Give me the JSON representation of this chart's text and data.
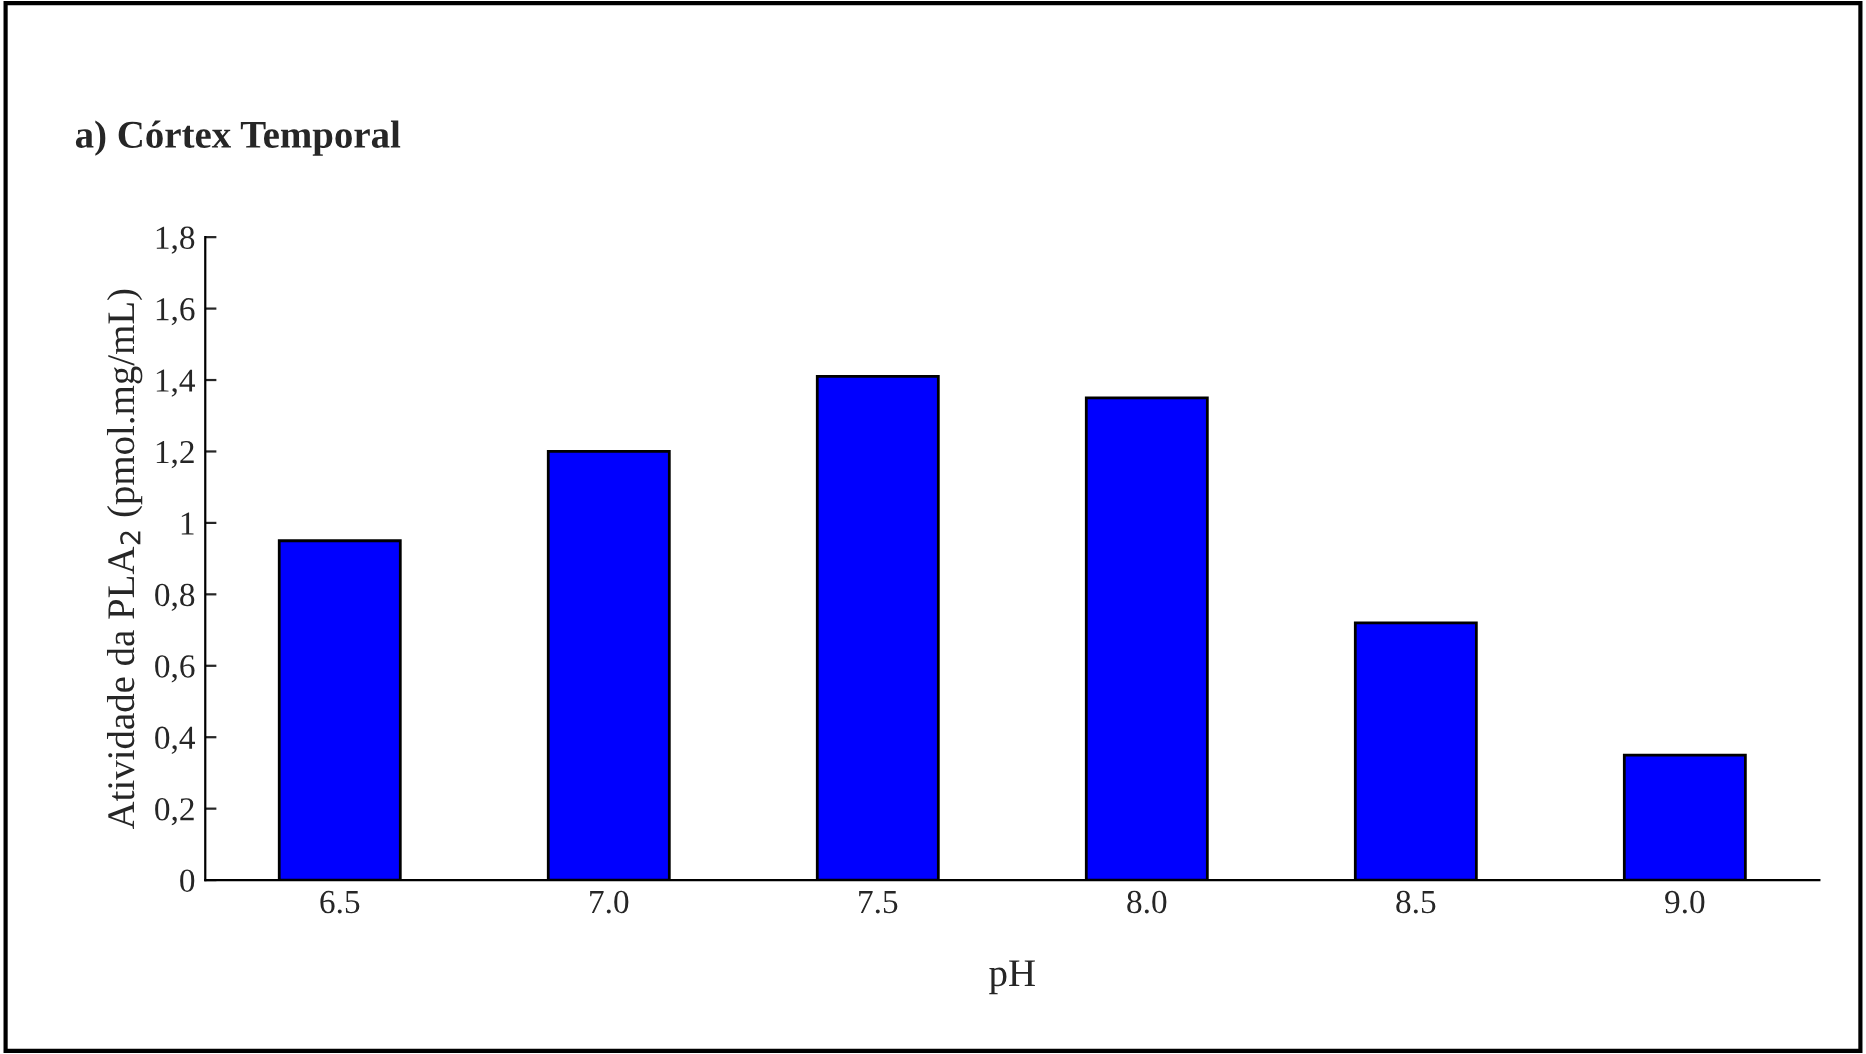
{
  "chart_data": {
    "type": "bar",
    "title": "a) Córtex Temporal",
    "xlabel": "pH",
    "ylabel": "Atividade da PLA$_{2}$ (pmol.mg/mL)",
    "categories": [
      "6.5",
      "7.0",
      "7.5",
      "8.0",
      "8.5",
      "9.0"
    ],
    "series": [
      {
        "color": "#0000ff",
        "values": [
          0.95,
          1.2,
          1.41,
          1.35,
          0.72,
          0.35
        ]
      }
    ],
    "ylim": [
      0,
      1.8
    ],
    "yticks": [
      0,
      {
        "value": 0.2,
        "label": "0,2"
      },
      {
        "value": 0.4,
        "label": "0,4"
      },
      {
        "value": 0.6,
        "label": "0,6"
      },
      {
        "value": 0.8,
        "label": "0,8"
      },
      1,
      {
        "value": 1.2,
        "label": "1,2"
      },
      {
        "value": 1.4,
        "label": "1,4"
      },
      {
        "value": 1.6,
        "label": "1,6"
      },
      {
        "value": 1.8,
        "label": "1,8"
      }
    ],
    "grid": false,
    "legend": false
  }
}
